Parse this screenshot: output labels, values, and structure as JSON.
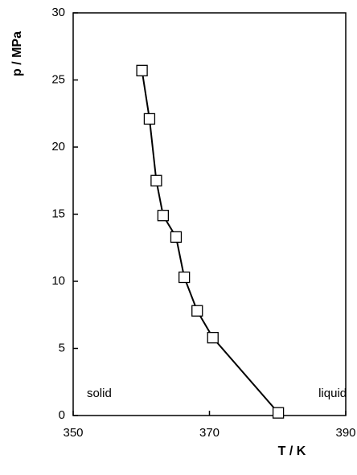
{
  "chart_data": {
    "type": "line",
    "x_label": "T / K",
    "y_label": "p / MPa",
    "x": [
      360.1,
      361.2,
      362.2,
      363.2,
      365.1,
      366.3,
      368.2,
      370.5,
      380.1
    ],
    "values": [
      25.7,
      22.1,
      17.5,
      14.9,
      13.3,
      10.3,
      7.8,
      5.8,
      0.2
    ],
    "color": "#000000",
    "xlim": [
      350,
      390
    ],
    "xticks": [
      350,
      370,
      390
    ],
    "ylim": [
      0,
      30
    ],
    "yticks": [
      0,
      5,
      10,
      15,
      20,
      25,
      30
    ],
    "grid": false,
    "annotations": [
      {
        "text": "solid",
        "x": 352,
        "y": 1.6
      },
      {
        "text": "liquid",
        "x": 386,
        "y": 1.6
      }
    ]
  }
}
